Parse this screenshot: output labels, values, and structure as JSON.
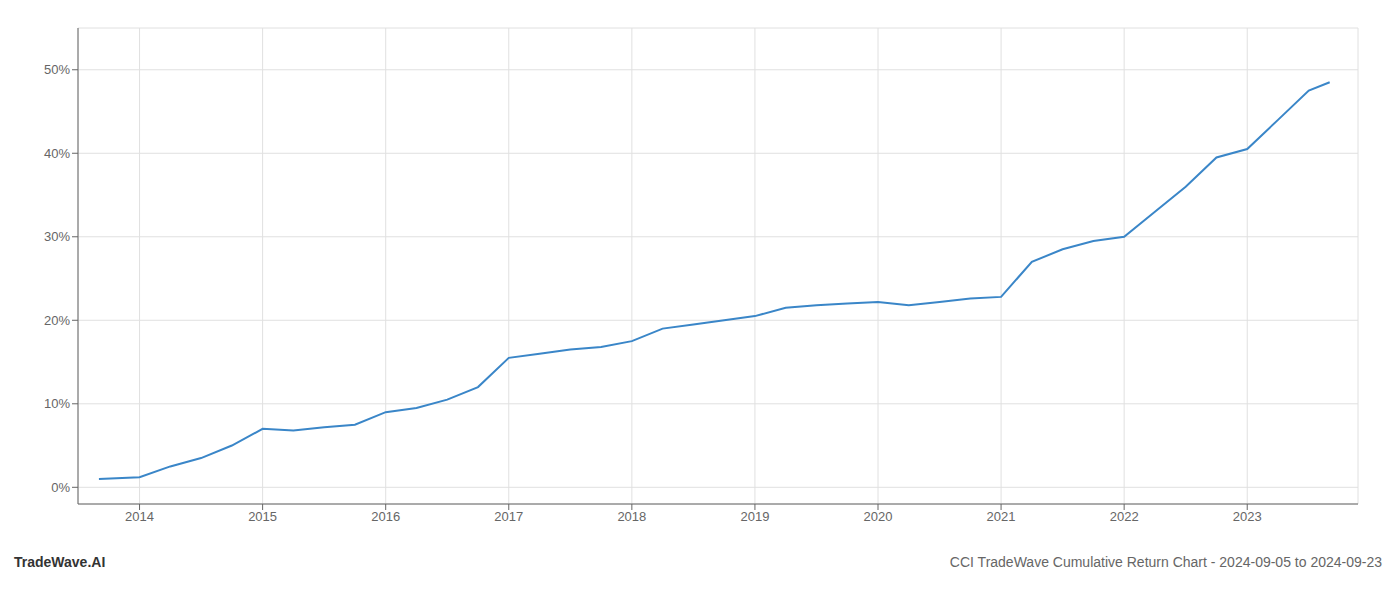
{
  "chart_data": {
    "type": "line",
    "title": "CCI TradeWave Cumulative Return Chart - 2024-09-05 to 2024-09-23",
    "annotations": [
      "TradeWave.AI"
    ],
    "x": [
      2013.67,
      2014.0,
      2014.25,
      2014.5,
      2014.75,
      2015.0,
      2015.25,
      2015.5,
      2015.75,
      2016.0,
      2016.25,
      2016.5,
      2016.75,
      2017.0,
      2017.25,
      2017.5,
      2017.75,
      2018.0,
      2018.25,
      2018.5,
      2018.75,
      2019.0,
      2019.25,
      2019.5,
      2019.75,
      2020.0,
      2020.25,
      2020.5,
      2020.75,
      2021.0,
      2021.25,
      2021.5,
      2021.75,
      2022.0,
      2022.25,
      2022.5,
      2022.75,
      2023.0,
      2023.25,
      2023.5,
      2023.67
    ],
    "values": [
      0.01,
      0.012,
      0.025,
      0.035,
      0.05,
      0.07,
      0.068,
      0.072,
      0.075,
      0.09,
      0.095,
      0.105,
      0.12,
      0.155,
      0.16,
      0.165,
      0.168,
      0.175,
      0.19,
      0.195,
      0.2,
      0.205,
      0.215,
      0.218,
      0.22,
      0.222,
      0.218,
      0.222,
      0.226,
      0.228,
      0.27,
      0.285,
      0.295,
      0.3,
      0.33,
      0.36,
      0.395,
      0.405,
      0.44,
      0.475,
      0.485
    ],
    "color": "#3a86c8",
    "xlim": [
      2013.5,
      2023.9
    ],
    "ylim": [
      -0.02,
      0.55
    ],
    "xticks": [
      2014,
      2015,
      2016,
      2017,
      2018,
      2019,
      2020,
      2021,
      2022,
      2023
    ],
    "yticks": [
      {
        "value": 0.0,
        "label": "0%"
      },
      {
        "value": 0.1,
        "label": "10%"
      },
      {
        "value": 0.2,
        "label": "20%"
      },
      {
        "value": 0.3,
        "label": "30%"
      },
      {
        "value": 0.4,
        "label": "40%"
      },
      {
        "value": 0.5,
        "label": "50%"
      }
    ],
    "grid": true,
    "marker": "none",
    "line_style": "solid"
  }
}
